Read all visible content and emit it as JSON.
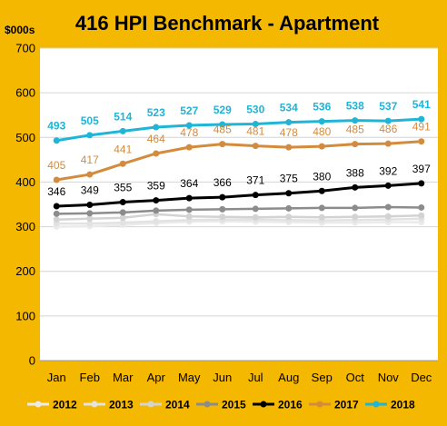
{
  "chart_data": {
    "type": "line",
    "title": "416 HPI Benchmark - Apartment",
    "ylabel": "$000s",
    "xlabel": "",
    "ylim": [
      0,
      700
    ],
    "yticks": [
      0,
      100,
      200,
      300,
      400,
      500,
      600,
      700
    ],
    "grid": true,
    "legend_position": "bottom",
    "categories": [
      "Jan",
      "Feb",
      "Mar",
      "Apr",
      "May",
      "Jun",
      "Jul",
      "Aug",
      "Sep",
      "Oct",
      "Nov",
      "Dec"
    ],
    "series": [
      {
        "name": "2012",
        "color": "#EBEBEB",
        "labeled": false,
        "values": [
          300,
          301,
          304,
          308,
          311,
          312,
          311,
          310,
          309,
          309,
          310,
          310
        ]
      },
      {
        "name": "2013",
        "color": "#E2E2E2",
        "labeled": false,
        "values": [
          307,
          307,
          309,
          312,
          315,
          316,
          316,
          315,
          314,
          315,
          316,
          318
        ]
      },
      {
        "name": "2014",
        "color": "#D3D3D3",
        "labeled": false,
        "values": [
          316,
          318,
          320,
          328,
          323,
          322,
          321,
          322,
          321,
          322,
          323,
          325
        ]
      },
      {
        "name": "2015",
        "color": "#8C8C8C",
        "labeled": false,
        "values": [
          329,
          330,
          332,
          336,
          338,
          339,
          340,
          341,
          342,
          342,
          344,
          343
        ]
      },
      {
        "name": "2016",
        "color": "#000000",
        "labeled": true,
        "values": [
          346,
          349,
          355,
          359,
          364,
          366,
          371,
          375,
          380,
          388,
          392,
          397
        ]
      },
      {
        "name": "2017",
        "color": "#D38B3E",
        "labeled": true,
        "values": [
          405,
          417,
          441,
          464,
          478,
          485,
          481,
          478,
          480,
          485,
          486,
          491
        ]
      },
      {
        "name": "2018",
        "color": "#1FB5D6",
        "labeled": true,
        "values": [
          493,
          505,
          514,
          523,
          527,
          529,
          530,
          534,
          536,
          538,
          537,
          541
        ]
      }
    ]
  },
  "colors": {
    "frame": "#F5B800",
    "plot_background": "#FFFFFF",
    "gridline": "#D4D4D4"
  }
}
